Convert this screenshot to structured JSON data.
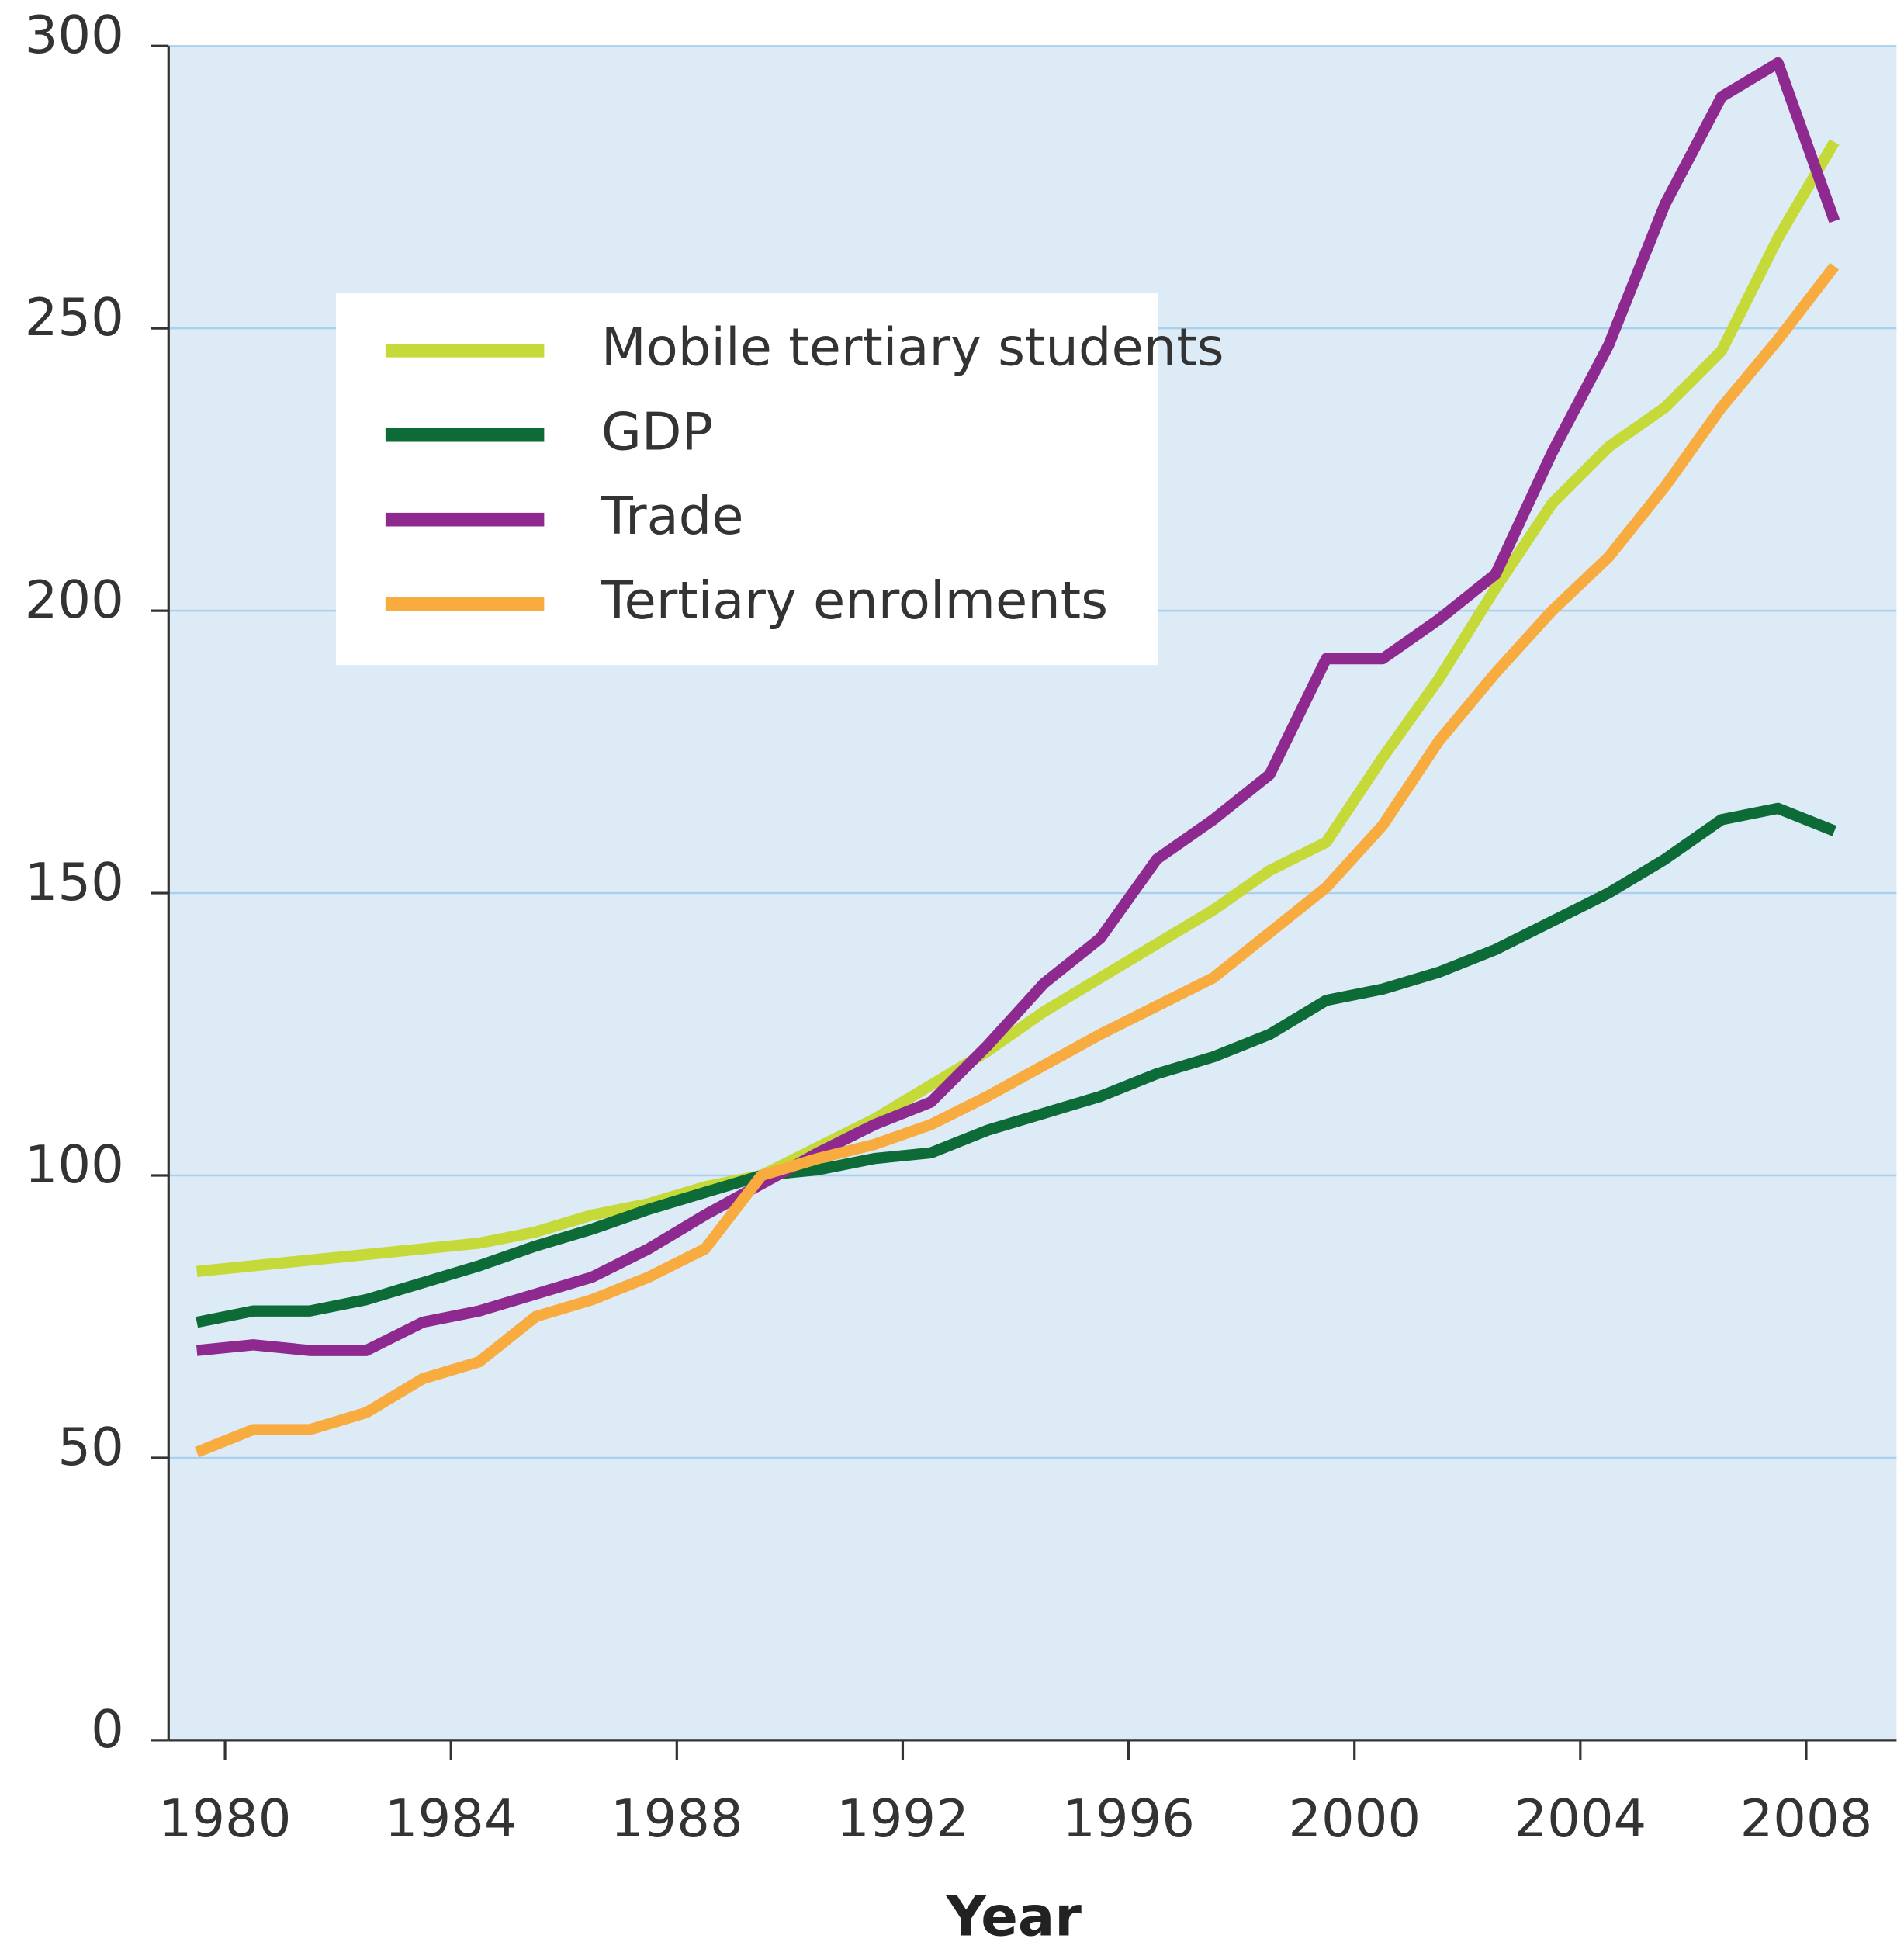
{
  "chart_data": {
    "type": "line",
    "x_label": "Year",
    "x": [
      1980,
      1981,
      1982,
      1983,
      1984,
      1985,
      1986,
      1987,
      1988,
      1989,
      1990,
      1991,
      1992,
      1993,
      1994,
      1995,
      1996,
      1997,
      1998,
      1999,
      2000,
      2001,
      2002,
      2003,
      2004,
      2005,
      2006,
      2007,
      2008,
      2009
    ],
    "series": [
      {
        "name": "Mobile tertiary students",
        "color": "#c5d938",
        "values": [
          83,
          84,
          85,
          86,
          87,
          88,
          90,
          93,
          95,
          98,
          100,
          105,
          110,
          116,
          122,
          129,
          135,
          141,
          147,
          154,
          159,
          174,
          188,
          204,
          219,
          229,
          236,
          246,
          266,
          283
        ]
      },
      {
        "name": "GDP",
        "color": "#0d6b37",
        "values": [
          74,
          76,
          76,
          78,
          81,
          84,
          87.5,
          90.5,
          94,
          97,
          100,
          101,
          103,
          104,
          108,
          111,
          114,
          118,
          121,
          125,
          131,
          133,
          136,
          140,
          145,
          150,
          156,
          163,
          165,
          161
        ]
      },
      {
        "name": "Trade",
        "color": "#8e2a8f",
        "values": [
          69,
          70,
          69,
          69,
          74,
          76,
          79,
          82,
          87,
          93,
          98.5,
          104,
          109,
          113,
          123,
          134,
          142,
          156,
          163,
          171,
          191.5,
          191.5,
          198.5,
          206.5,
          228,
          247,
          272,
          291,
          297,
          269
        ]
      },
      {
        "name": "Tertiary enrolments",
        "color": "#f8ab3f",
        "values": [
          51,
          55,
          55,
          58,
          64,
          67,
          75,
          78,
          82,
          87,
          100,
          103,
          105.5,
          109,
          114,
          119.5,
          125,
          130,
          135,
          143,
          151,
          162,
          177,
          189,
          200,
          209.5,
          222,
          236,
          248,
          261
        ]
      }
    ],
    "xlim": [
      1979.5,
      2010.1
    ],
    "xticks": [
      {
        "value": 1980.5,
        "label": "1980"
      },
      {
        "value": 1984.5,
        "label": "1984"
      },
      {
        "value": 1988.5,
        "label": "1988"
      },
      {
        "value": 1992.5,
        "label": "1992"
      },
      {
        "value": 1996.5,
        "label": "1996"
      },
      {
        "value": 2000.5,
        "label": "2000"
      },
      {
        "value": 2004.5,
        "label": "2004"
      },
      {
        "value": 2008.5,
        "label": "2008"
      }
    ],
    "ylim": [
      0,
      300
    ],
    "yticks": [
      0,
      50,
      100,
      150,
      200,
      250,
      300
    ],
    "grid": true,
    "legend": "upper left"
  }
}
